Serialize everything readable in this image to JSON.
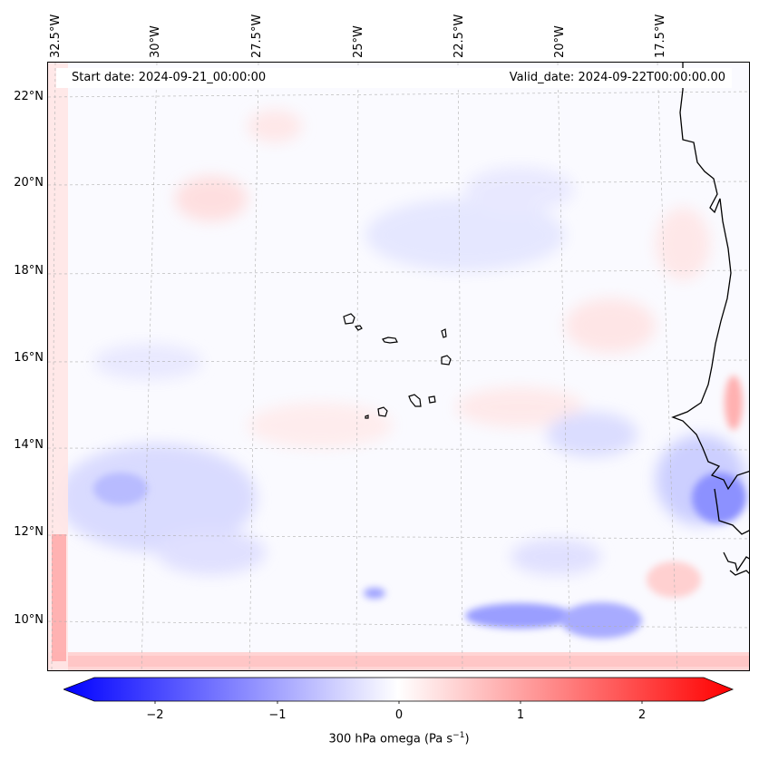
{
  "map": {
    "header": {
      "start_date": "Start date: 2024-09-21_00:00:00",
      "valid_date": "Valid_date: 2024-09-22T00:00:00.00"
    },
    "longitude_labels": [
      "32.5°W",
      "30°W",
      "27.5°W",
      "25°W",
      "22.5°W",
      "20°W",
      "17.5°W"
    ],
    "latitude_labels": [
      "22°N",
      "20°N",
      "18°N",
      "16°N",
      "14°N",
      "12°N",
      "10°N"
    ],
    "colorbar": {
      "ticks": [
        "−2",
        "−1",
        "0",
        "1",
        "2"
      ],
      "title": "300 hPa omega (Pa s",
      "title_sup": "−1",
      "title_end": ")",
      "min_color": "#0000ff",
      "mid_color": "#ffffff",
      "max_color": "#ff0000",
      "range": [
        -2.6,
        2.6
      ]
    },
    "features": {
      "coastline_color": "#000000",
      "gridline_color": "#b0b0b0"
    }
  }
}
